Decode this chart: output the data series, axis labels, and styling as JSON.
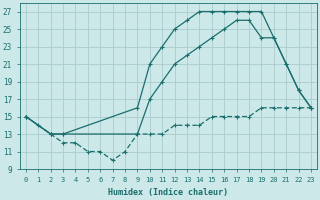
{
  "xlabel": "Humidex (Indice chaleur)",
  "background_color": "#cce8e8",
  "grid_color": "#aacccc",
  "line_color": "#1a6e6e",
  "xlim": [
    -0.5,
    23.5
  ],
  "ylim": [
    9,
    28
  ],
  "xticks": [
    0,
    1,
    2,
    3,
    4,
    5,
    6,
    7,
    8,
    9,
    10,
    11,
    12,
    13,
    14,
    15,
    16,
    17,
    18,
    19,
    20,
    21,
    22,
    23
  ],
  "yticks": [
    9,
    11,
    13,
    15,
    17,
    19,
    21,
    23,
    25,
    27
  ],
  "series": [
    {
      "x": [
        0,
        1,
        2,
        3,
        9,
        10,
        11,
        12,
        13,
        14,
        15,
        16,
        17,
        18,
        19,
        20,
        21,
        22,
        23
      ],
      "y": [
        15,
        14,
        13,
        13,
        16,
        21,
        23,
        25,
        26,
        27,
        27,
        27,
        27,
        27,
        27,
        24,
        21,
        18,
        16
      ],
      "linestyle": "-",
      "marker": "+"
    },
    {
      "x": [
        0,
        2,
        3,
        9,
        10,
        11,
        12,
        13,
        14,
        15,
        16,
        17,
        18,
        19,
        20,
        21,
        22,
        23
      ],
      "y": [
        15,
        13,
        13,
        13,
        17,
        19,
        21,
        22,
        23,
        24,
        25,
        26,
        26,
        24,
        24,
        21,
        18,
        16
      ],
      "linestyle": "-",
      "marker": "+"
    },
    {
      "x": [
        0,
        2,
        3,
        4,
        5,
        6,
        7,
        8,
        9,
        10,
        11,
        12,
        13,
        14,
        15,
        16,
        17,
        18,
        19,
        20,
        21,
        22,
        23
      ],
      "y": [
        15,
        13,
        12,
        12,
        11,
        11,
        10,
        11,
        13,
        13,
        13,
        14,
        14,
        14,
        15,
        15,
        15,
        15,
        16,
        16,
        16,
        16,
        16
      ],
      "linestyle": "--",
      "marker": "+"
    }
  ]
}
